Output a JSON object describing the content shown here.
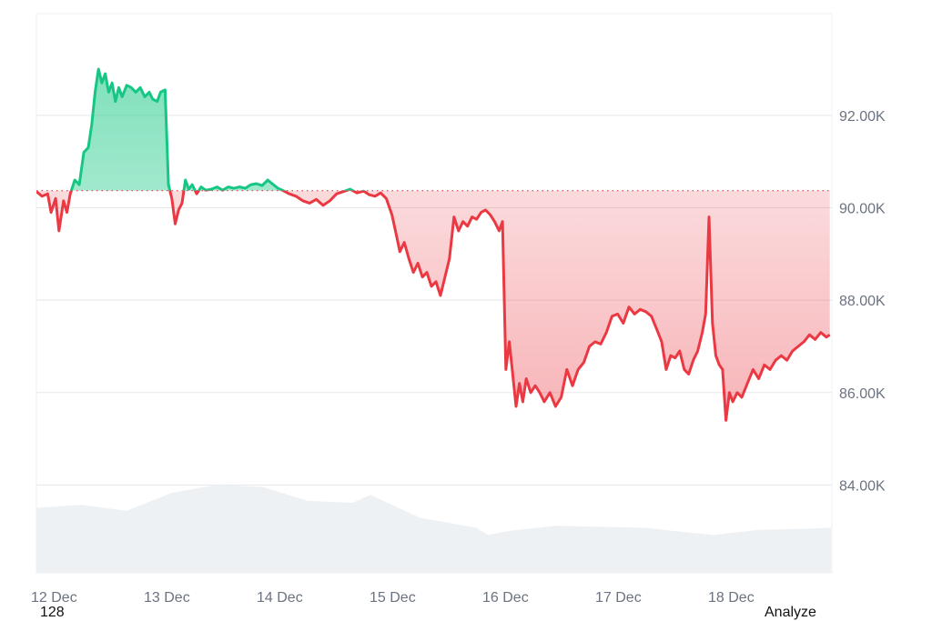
{
  "chart_data": {
    "type": "area",
    "baseline": 90370,
    "ylim": [
      82100,
      94200
    ],
    "y_ticks": [
      {
        "value": 92000,
        "label": "92.00K"
      },
      {
        "value": 90000,
        "label": "90.00K"
      },
      {
        "value": 88000,
        "label": "88.00K"
      },
      {
        "value": 86000,
        "label": "86.00K"
      },
      {
        "value": 84000,
        "label": "84.00K"
      }
    ],
    "x_ticks": [
      "12 Dec",
      "13 Dec",
      "14 Dec",
      "15 Dec",
      "16 Dec",
      "17 Dec",
      "18 Dec"
    ],
    "xlim": [
      0,
      7.04
    ],
    "colors": {
      "up": "#16c784",
      "down": "#ea3943",
      "baseline": "#ea3943",
      "grid": "#e5e7eb",
      "volume": "#eef1f4"
    },
    "grid": true,
    "price": [
      [
        0.0,
        90350
      ],
      [
        0.05,
        90250
      ],
      [
        0.1,
        90300
      ],
      [
        0.13,
        89900
      ],
      [
        0.17,
        90200
      ],
      [
        0.2,
        89500
      ],
      [
        0.24,
        90150
      ],
      [
        0.27,
        89900
      ],
      [
        0.3,
        90300
      ],
      [
        0.34,
        90600
      ],
      [
        0.38,
        90500
      ],
      [
        0.42,
        91200
      ],
      [
        0.46,
        91300
      ],
      [
        0.49,
        91800
      ],
      [
        0.52,
        92500
      ],
      [
        0.55,
        93000
      ],
      [
        0.58,
        92700
      ],
      [
        0.61,
        92900
      ],
      [
        0.64,
        92500
      ],
      [
        0.67,
        92700
      ],
      [
        0.7,
        92300
      ],
      [
        0.73,
        92600
      ],
      [
        0.76,
        92400
      ],
      [
        0.8,
        92650
      ],
      [
        0.84,
        92600
      ],
      [
        0.88,
        92500
      ],
      [
        0.92,
        92600
      ],
      [
        0.96,
        92400
      ],
      [
        1.0,
        92500
      ],
      [
        1.03,
        92350
      ],
      [
        1.07,
        92300
      ],
      [
        1.1,
        92500
      ],
      [
        1.14,
        92550
      ],
      [
        1.17,
        90500
      ],
      [
        1.2,
        90200
      ],
      [
        1.23,
        89650
      ],
      [
        1.26,
        89950
      ],
      [
        1.29,
        90100
      ],
      [
        1.32,
        90600
      ],
      [
        1.35,
        90400
      ],
      [
        1.38,
        90500
      ],
      [
        1.42,
        90300
      ],
      [
        1.46,
        90450
      ],
      [
        1.5,
        90380
      ],
      [
        1.55,
        90400
      ],
      [
        1.6,
        90450
      ],
      [
        1.65,
        90380
      ],
      [
        1.7,
        90450
      ],
      [
        1.75,
        90420
      ],
      [
        1.8,
        90450
      ],
      [
        1.85,
        90420
      ],
      [
        1.9,
        90500
      ],
      [
        1.95,
        90520
      ],
      [
        2.0,
        90480
      ],
      [
        2.05,
        90600
      ],
      [
        2.1,
        90500
      ],
      [
        2.14,
        90420
      ],
      [
        2.18,
        90380
      ],
      [
        2.24,
        90300
      ],
      [
        2.3,
        90250
      ],
      [
        2.36,
        90150
      ],
      [
        2.42,
        90100
      ],
      [
        2.48,
        90180
      ],
      [
        2.54,
        90050
      ],
      [
        2.6,
        90150
      ],
      [
        2.66,
        90300
      ],
      [
        2.72,
        90350
      ],
      [
        2.78,
        90400
      ],
      [
        2.84,
        90320
      ],
      [
        2.9,
        90360
      ],
      [
        2.95,
        90280
      ],
      [
        3.0,
        90250
      ],
      [
        3.05,
        90320
      ],
      [
        3.1,
        90200
      ],
      [
        3.15,
        89850
      ],
      [
        3.19,
        89400
      ],
      [
        3.22,
        89050
      ],
      [
        3.26,
        89250
      ],
      [
        3.3,
        88900
      ],
      [
        3.34,
        88600
      ],
      [
        3.38,
        88800
      ],
      [
        3.42,
        88500
      ],
      [
        3.46,
        88600
      ],
      [
        3.5,
        88300
      ],
      [
        3.54,
        88400
      ],
      [
        3.58,
        88100
      ],
      [
        3.62,
        88500
      ],
      [
        3.66,
        88900
      ],
      [
        3.7,
        89800
      ],
      [
        3.74,
        89500
      ],
      [
        3.78,
        89700
      ],
      [
        3.82,
        89600
      ],
      [
        3.86,
        89800
      ],
      [
        3.9,
        89750
      ],
      [
        3.94,
        89900
      ],
      [
        3.98,
        89950
      ],
      [
        4.02,
        89850
      ],
      [
        4.06,
        89700
      ],
      [
        4.1,
        89500
      ],
      [
        4.13,
        89700
      ],
      [
        4.16,
        86500
      ],
      [
        4.19,
        87100
      ],
      [
        4.22,
        86400
      ],
      [
        4.25,
        85700
      ],
      [
        4.28,
        86200
      ],
      [
        4.31,
        85800
      ],
      [
        4.34,
        86300
      ],
      [
        4.38,
        86000
      ],
      [
        4.42,
        86150
      ],
      [
        4.46,
        86000
      ],
      [
        4.5,
        85800
      ],
      [
        4.55,
        86000
      ],
      [
        4.6,
        85700
      ],
      [
        4.65,
        85900
      ],
      [
        4.7,
        86500
      ],
      [
        4.75,
        86150
      ],
      [
        4.8,
        86500
      ],
      [
        4.85,
        86650
      ],
      [
        4.9,
        87000
      ],
      [
        4.95,
        87100
      ],
      [
        5.0,
        87050
      ],
      [
        5.05,
        87300
      ],
      [
        5.1,
        87650
      ],
      [
        5.15,
        87700
      ],
      [
        5.2,
        87500
      ],
      [
        5.25,
        87850
      ],
      [
        5.3,
        87700
      ],
      [
        5.35,
        87800
      ],
      [
        5.4,
        87750
      ],
      [
        5.45,
        87650
      ],
      [
        5.5,
        87350
      ],
      [
        5.54,
        87100
      ],
      [
        5.58,
        86500
      ],
      [
        5.62,
        86800
      ],
      [
        5.66,
        86750
      ],
      [
        5.7,
        86900
      ],
      [
        5.74,
        86500
      ],
      [
        5.78,
        86400
      ],
      [
        5.82,
        86700
      ],
      [
        5.86,
        86900
      ],
      [
        5.9,
        87300
      ],
      [
        5.93,
        87700
      ],
      [
        5.96,
        89800
      ],
      [
        5.99,
        87500
      ],
      [
        6.02,
        86800
      ],
      [
        6.05,
        86600
      ],
      [
        6.08,
        86500
      ],
      [
        6.11,
        85400
      ],
      [
        6.14,
        86000
      ],
      [
        6.17,
        85800
      ],
      [
        6.21,
        86000
      ],
      [
        6.25,
        85900
      ],
      [
        6.3,
        86200
      ],
      [
        6.35,
        86500
      ],
      [
        6.4,
        86300
      ],
      [
        6.45,
        86600
      ],
      [
        6.5,
        86500
      ],
      [
        6.55,
        86700
      ],
      [
        6.6,
        86800
      ],
      [
        6.65,
        86700
      ],
      [
        6.7,
        86900
      ],
      [
        6.75,
        87000
      ],
      [
        6.8,
        87100
      ],
      [
        6.85,
        87250
      ],
      [
        6.9,
        87150
      ],
      [
        6.95,
        87300
      ],
      [
        7.0,
        87200
      ],
      [
        7.03,
        87250
      ]
    ],
    "volume": [
      [
        0.0,
        0.65
      ],
      [
        0.4,
        0.68
      ],
      [
        0.8,
        0.62
      ],
      [
        1.2,
        0.8
      ],
      [
        1.6,
        0.88
      ],
      [
        2.0,
        0.86
      ],
      [
        2.4,
        0.72
      ],
      [
        2.8,
        0.7
      ],
      [
        2.96,
        0.78
      ],
      [
        3.4,
        0.55
      ],
      [
        3.9,
        0.45
      ],
      [
        4.0,
        0.38
      ],
      [
        4.2,
        0.42
      ],
      [
        4.6,
        0.47
      ],
      [
        5.0,
        0.46
      ],
      [
        5.4,
        0.45
      ],
      [
        5.8,
        0.4
      ],
      [
        6.0,
        0.38
      ],
      [
        6.4,
        0.43
      ],
      [
        6.8,
        0.44
      ],
      [
        7.04,
        0.45
      ]
    ]
  },
  "footer": {
    "left_text": "128",
    "right_text": "Analyze"
  }
}
